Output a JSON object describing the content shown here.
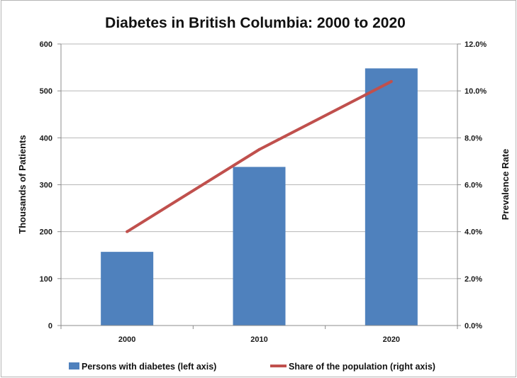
{
  "chart_data": {
    "type": "bar",
    "title": "Diabetes in British Columbia: 2000 to 2020",
    "categories": [
      "2000",
      "2010",
      "2020"
    ],
    "series": [
      {
        "name": "Persons with diabetes (left axis)",
        "type": "bar",
        "axis": "left",
        "color": "#4f81bd",
        "values": [
          157,
          338,
          548
        ]
      },
      {
        "name": "Share of the population (right axis)",
        "type": "line",
        "axis": "right",
        "color": "#c0504d",
        "values": [
          4.0,
          7.5,
          10.4
        ]
      }
    ],
    "ylabel": "Thousands of Patients",
    "y2label": "Prevalence Rate",
    "ylim": [
      0,
      600
    ],
    "y2lim": [
      0,
      12
    ],
    "yticks": [
      "0",
      "100",
      "200",
      "300",
      "400",
      "500",
      "600"
    ],
    "y2ticks": [
      "0.0%",
      "2.0%",
      "4.0%",
      "6.0%",
      "8.0%",
      "10.0%",
      "12.0%"
    ],
    "grid": true,
    "legend": "bottom"
  }
}
